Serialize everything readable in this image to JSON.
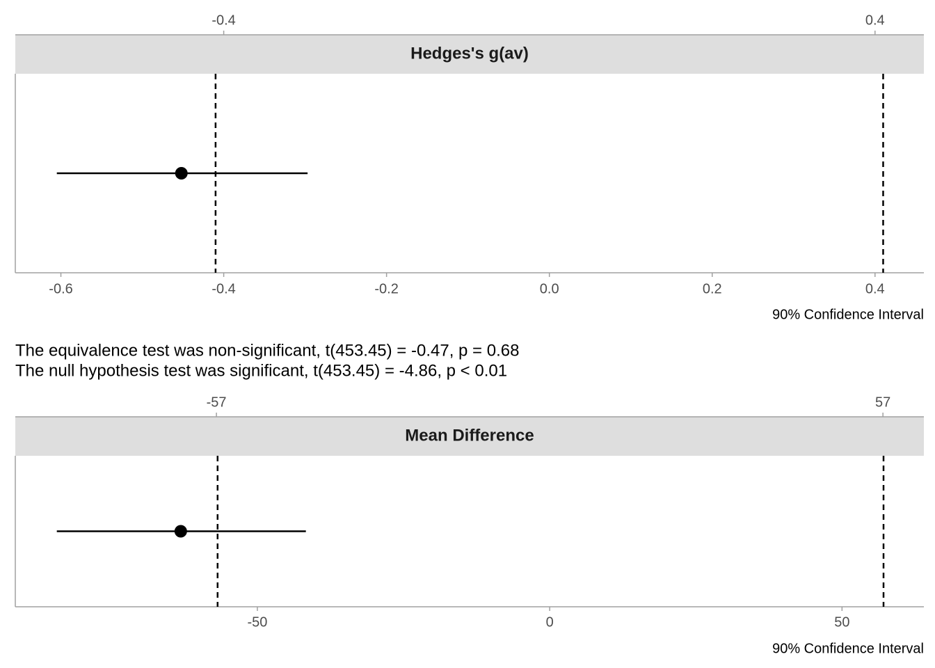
{
  "chart_data": [
    {
      "type": "pointrange",
      "title": "Hedges's g(av)",
      "x_label": "90% Confidence Interval",
      "xlim": [
        -0.656,
        0.46
      ],
      "xticks": [
        -0.6,
        -0.4,
        -0.2,
        0.0,
        0.2,
        0.4
      ],
      "top_xticks": [
        -0.4,
        0.4
      ],
      "bounds": [
        -0.41,
        0.41
      ],
      "estimate": -0.452,
      "ci": [
        -0.605,
        -0.297
      ],
      "color": "#000000",
      "annotations": [
        "The equivalence test was non-significant, t(453.45) = -0.47, p = 0.68",
        "The null hypothesis test was significant, t(453.45) = -4.86, p < 0.01"
      ]
    },
    {
      "type": "pointrange",
      "title": "Mean Difference",
      "x_label": "90% Confidence Interval",
      "xlim": [
        -91.4,
        64.0
      ],
      "xticks": [
        -50,
        0,
        50
      ],
      "top_xticks": [
        -57,
        57
      ],
      "bounds": [
        -56.8,
        57.1
      ],
      "estimate": -63.1,
      "ci": [
        -84.3,
        -41.7
      ],
      "color": "#000000"
    }
  ]
}
